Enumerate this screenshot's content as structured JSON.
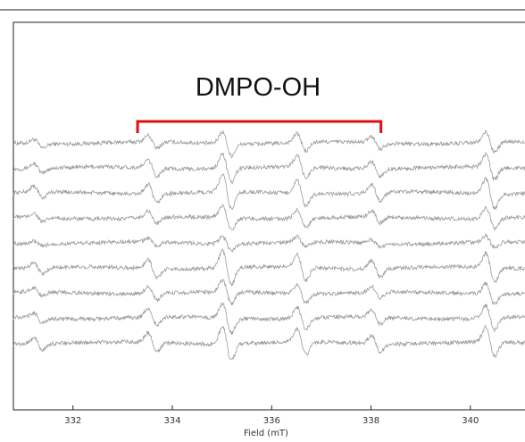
{
  "chart_data": {
    "type": "line",
    "title": "",
    "xlabel": "Field (mT)",
    "ylabel": "",
    "xlim": [
      330.8,
      341.1
    ],
    "xticks": [
      332,
      334,
      336,
      338,
      340
    ],
    "x_tick_labels": [
      "332",
      "334",
      "336",
      "338",
      "340"
    ],
    "grid": false,
    "series": [
      {
        "values": [],
        "x": []
      },
      {
        "values": [],
        "x": []
      },
      {
        "values": [],
        "x": []
      },
      {
        "values": [],
        "x": []
      },
      {
        "values": [],
        "x": []
      },
      {
        "values": [],
        "x": []
      },
      {
        "values": [],
        "x": []
      },
      {
        "values": [],
        "x": []
      },
      {
        "values": [],
        "x": []
      }
    ],
    "signal_peaks_mT": [
      331.3,
      333.6,
      335.1,
      336.6,
      338.1,
      340.4
    ],
    "annotation": {
      "text": "DMPO-OH",
      "bracket_from": 333.3,
      "bracket_to": 338.2,
      "color": "#dd1111"
    },
    "trace_color": "#9a9a9a"
  }
}
